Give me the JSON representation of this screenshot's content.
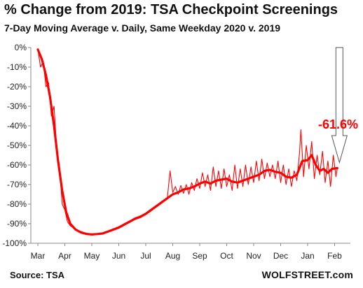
{
  "chart_data": {
    "type": "line",
    "title": "% Change from 2019: TSA Checkpoint Screenings",
    "subtitle": "7-Day Moving Average v. Daily, Same Weekday 2020 v. 2019",
    "x_tick_labels": [
      "Mar",
      "Apr",
      "May",
      "Jun",
      "Jul",
      "Aug",
      "Sep",
      "Oct",
      "Nov",
      "Dec",
      "Jan",
      "Feb"
    ],
    "y_tick_labels": [
      "0%",
      "-10%",
      "-20%",
      "-30%",
      "-40%",
      "-50%",
      "-60%",
      "-70%",
      "-80%",
      "-90%",
      "-100%"
    ],
    "ylim": [
      -100,
      0
    ],
    "annotation": {
      "text": "-61.6%",
      "value": -61.6
    },
    "colors": {
      "series": "#ff0000",
      "axis": "#888888",
      "arrow": "#555555"
    },
    "series": [
      {
        "style": "thick",
        "points": [
          [
            0.0,
            -1
          ],
          [
            0.15,
            -6
          ],
          [
            0.3,
            -14
          ],
          [
            0.45,
            -25
          ],
          [
            0.6,
            -40
          ],
          [
            0.75,
            -58
          ],
          [
            0.9,
            -73
          ],
          [
            1.05,
            -84
          ],
          [
            1.2,
            -90
          ],
          [
            1.4,
            -93
          ],
          [
            1.6,
            -94.5
          ],
          [
            1.8,
            -95.2
          ],
          [
            2.0,
            -95.5
          ],
          [
            2.2,
            -95.3
          ],
          [
            2.4,
            -95
          ],
          [
            2.6,
            -94
          ],
          [
            2.8,
            -93
          ],
          [
            3.0,
            -92
          ],
          [
            3.2,
            -90.5
          ],
          [
            3.4,
            -89
          ],
          [
            3.6,
            -87.5
          ],
          [
            3.8,
            -86.5
          ],
          [
            4.0,
            -85
          ],
          [
            4.2,
            -83
          ],
          [
            4.4,
            -81
          ],
          [
            4.6,
            -79
          ],
          [
            4.8,
            -77
          ],
          [
            5.0,
            -75
          ],
          [
            5.2,
            -74
          ],
          [
            5.4,
            -72.5
          ],
          [
            5.6,
            -72
          ],
          [
            5.8,
            -71
          ],
          [
            6.0,
            -69.5
          ],
          [
            6.2,
            -68.5
          ],
          [
            6.4,
            -69.5
          ],
          [
            6.6,
            -68
          ],
          [
            6.8,
            -67.5
          ],
          [
            7.0,
            -67
          ],
          [
            7.2,
            -68.5
          ],
          [
            7.4,
            -69
          ],
          [
            7.6,
            -68
          ],
          [
            7.8,
            -67
          ],
          [
            8.0,
            -66
          ],
          [
            8.2,
            -65
          ],
          [
            8.4,
            -63
          ],
          [
            8.6,
            -62.5
          ],
          [
            8.8,
            -63.5
          ],
          [
            9.0,
            -64
          ],
          [
            9.2,
            -66
          ],
          [
            9.4,
            -66.5
          ],
          [
            9.6,
            -65
          ],
          [
            9.8,
            -58
          ],
          [
            10.0,
            -57.5
          ],
          [
            10.15,
            -55
          ],
          [
            10.3,
            -60
          ],
          [
            10.45,
            -63
          ],
          [
            10.6,
            -62
          ],
          [
            10.75,
            -64
          ],
          [
            10.9,
            -62
          ],
          [
            11.0,
            -61.8
          ],
          [
            11.1,
            -61.6
          ]
        ]
      },
      {
        "style": "thin",
        "points": [
          [
            0.0,
            -1
          ],
          [
            0.1,
            -10
          ],
          [
            0.2,
            -7
          ],
          [
            0.3,
            -20
          ],
          [
            0.4,
            -18
          ],
          [
            0.5,
            -35
          ],
          [
            0.6,
            -30
          ],
          [
            0.7,
            -52
          ],
          [
            0.8,
            -60
          ],
          [
            0.9,
            -80
          ],
          [
            1.0,
            -83
          ],
          [
            1.1,
            -89
          ],
          [
            1.2,
            -91
          ],
          [
            1.4,
            -93
          ],
          [
            1.6,
            -94
          ],
          [
            1.8,
            -95
          ],
          [
            2.0,
            -95.6
          ],
          [
            2.2,
            -95.4
          ],
          [
            2.4,
            -94.6
          ],
          [
            2.6,
            -93.7
          ],
          [
            2.8,
            -92.6
          ],
          [
            3.0,
            -91.5
          ],
          [
            3.2,
            -90
          ],
          [
            3.4,
            -88.6
          ],
          [
            3.6,
            -87
          ],
          [
            3.8,
            -86
          ],
          [
            4.0,
            -84.5
          ],
          [
            4.2,
            -82.5
          ],
          [
            4.4,
            -80.5
          ],
          [
            4.6,
            -78.5
          ],
          [
            4.8,
            -76.8
          ],
          [
            4.9,
            -63
          ],
          [
            5.0,
            -74
          ],
          [
            5.1,
            -71
          ],
          [
            5.2,
            -75
          ],
          [
            5.3,
            -70.5
          ],
          [
            5.4,
            -74.5
          ],
          [
            5.5,
            -70
          ],
          [
            5.6,
            -75
          ],
          [
            5.7,
            -69
          ],
          [
            5.8,
            -73
          ],
          [
            5.9,
            -67
          ],
          [
            6.0,
            -72
          ],
          [
            6.1,
            -64
          ],
          [
            6.2,
            -71
          ],
          [
            6.3,
            -65
          ],
          [
            6.4,
            -73
          ],
          [
            6.5,
            -61
          ],
          [
            6.6,
            -71
          ],
          [
            6.7,
            -63
          ],
          [
            6.8,
            -72
          ],
          [
            6.9,
            -62
          ],
          [
            7.0,
            -71
          ],
          [
            7.1,
            -65
          ],
          [
            7.2,
            -73
          ],
          [
            7.3,
            -60
          ],
          [
            7.4,
            -72
          ],
          [
            7.5,
            -62
          ],
          [
            7.6,
            -71
          ],
          [
            7.7,
            -60
          ],
          [
            7.8,
            -70
          ],
          [
            7.9,
            -61
          ],
          [
            8.0,
            -69
          ],
          [
            8.1,
            -58
          ],
          [
            8.2,
            -68
          ],
          [
            8.3,
            -57
          ],
          [
            8.4,
            -67
          ],
          [
            8.5,
            -59
          ],
          [
            8.6,
            -66
          ],
          [
            8.7,
            -60
          ],
          [
            8.8,
            -67
          ],
          [
            8.9,
            -58
          ],
          [
            9.0,
            -69
          ],
          [
            9.1,
            -60
          ],
          [
            9.2,
            -70
          ],
          [
            9.3,
            -62
          ],
          [
            9.4,
            -71
          ],
          [
            9.5,
            -63
          ],
          [
            9.6,
            -68
          ],
          [
            9.7,
            -54
          ],
          [
            9.75,
            -42
          ],
          [
            9.85,
            -66
          ],
          [
            9.95,
            -50
          ],
          [
            10.05,
            -62
          ],
          [
            10.15,
            -48
          ],
          [
            10.25,
            -67
          ],
          [
            10.35,
            -55
          ],
          [
            10.45,
            -65
          ],
          [
            10.55,
            -53
          ],
          [
            10.65,
            -69
          ],
          [
            10.75,
            -58
          ],
          [
            10.85,
            -71
          ],
          [
            10.95,
            -55
          ],
          [
            11.05,
            -66
          ],
          [
            11.1,
            -61.6
          ]
        ]
      }
    ]
  },
  "source": "Source: TSA",
  "brand": "WOLFSTREET.com"
}
